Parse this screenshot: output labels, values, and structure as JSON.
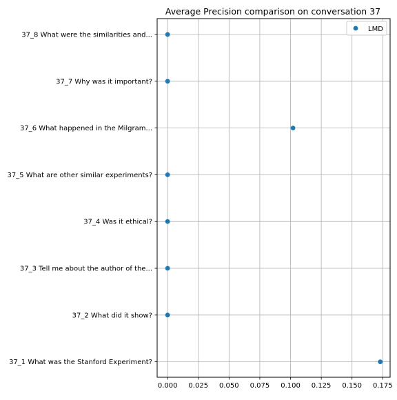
{
  "chart_data": {
    "type": "scatter",
    "title": "Average Precision comparison on conversation 37",
    "xlabel": "",
    "ylabel": "",
    "xlim": [
      -0.0085,
      0.181
    ],
    "x_ticks": [
      0.0,
      0.025,
      0.05,
      0.075,
      0.1,
      0.125,
      0.15,
      0.175
    ],
    "x_tick_labels": [
      "0.000",
      "0.025",
      "0.050",
      "0.075",
      "0.100",
      "0.125",
      "0.150",
      "0.175"
    ],
    "grid": true,
    "legend": {
      "placement": "top-right",
      "entries": [
        "LMD"
      ]
    },
    "series_color": "#1f77b4",
    "categories": [
      "37_8 What were the similarities and...",
      "37_7 Why was it important?",
      "37_6 What happened in the Milgram...",
      "37_5 What are other similar experiments?",
      "37_4 Was it ethical?",
      "37_3 Tell me about the author of the...",
      "37_2 What did it show?",
      "37_1 What was the Stanford Experiment?"
    ],
    "series": [
      {
        "name": "LMD",
        "values": [
          0.0,
          0.0,
          0.102,
          0.0,
          0.0,
          0.0,
          0.0,
          0.173
        ]
      }
    ]
  }
}
